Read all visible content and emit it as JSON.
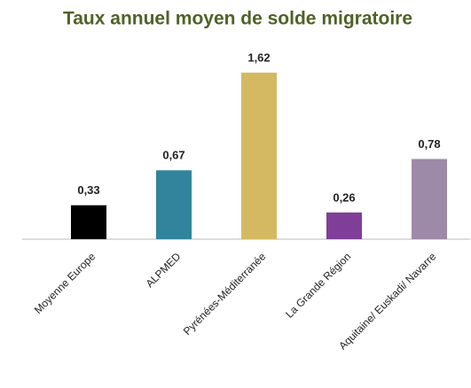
{
  "chart_data": {
    "type": "bar",
    "title": "Taux annuel moyen de solde migratoire",
    "categories": [
      "Moyenne Europe",
      "ALPMED",
      "Pyrénées-Méditerranée",
      "La Grande Région",
      "Aquitaine/ Euskadi/ Navarre"
    ],
    "values": [
      0.33,
      0.67,
      1.62,
      0.26,
      0.78
    ],
    "value_labels": [
      "0,33",
      "0,67",
      "1,62",
      "0,26",
      "0,78"
    ],
    "colors": [
      "#000000",
      "#31849b",
      "#d4b962",
      "#7f3f98",
      "#9d8aa8"
    ]
  }
}
